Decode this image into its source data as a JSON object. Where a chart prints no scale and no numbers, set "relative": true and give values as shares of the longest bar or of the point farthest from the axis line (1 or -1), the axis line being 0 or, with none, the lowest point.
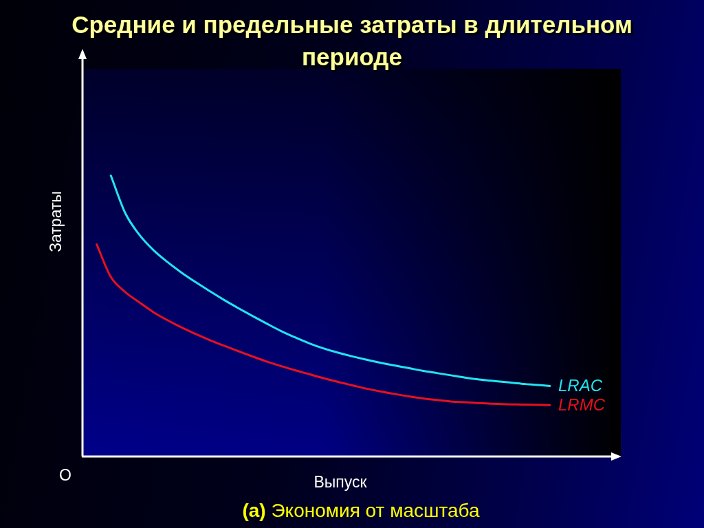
{
  "chart_data": {
    "type": "line",
    "title": "Средние и предельные затраты в длительном периоде",
    "xlabel": "Выпуск",
    "ylabel": "Затраты",
    "relative": true,
    "categories": [
      null,
      null,
      null,
      null,
      null,
      null,
      null,
      null,
      null,
      null,
      null,
      null,
      null,
      null,
      null,
      null,
      null,
      null,
      null,
      null,
      null,
      null,
      null,
      null,
      null,
      null,
      null,
      null,
      null,
      null,
      null,
      null,
      null,
      null,
      null,
      null,
      null,
      null,
      null
    ],
    "series": [
      {
        "name": "LRAC",
        "color": "#22e4f2",
        "values": [
          null,
          null,
          1.0,
          0.868,
          0.79,
          0.735,
          0.692,
          0.654,
          0.62,
          0.588,
          0.557,
          0.528,
          0.5,
          0.473,
          0.447,
          0.424,
          0.403,
          0.385,
          0.37,
          0.357,
          0.345,
          0.334,
          0.324,
          0.315,
          0.305,
          0.297,
          0.289,
          0.281,
          0.274,
          0.269,
          0.264,
          0.259,
          0.255,
          0.251,
          null,
          null,
          null,
          null,
          null
        ]
      },
      {
        "name": "LRMC",
        "color": "#e8101e",
        "values": [
          null,
          0.755,
          0.639,
          0.586,
          0.549,
          0.514,
          0.485,
          0.459,
          0.436,
          0.414,
          0.394,
          0.375,
          0.356,
          0.338,
          0.322,
          0.307,
          0.293,
          0.279,
          0.266,
          0.254,
          0.242,
          0.232,
          0.223,
          0.214,
          0.207,
          0.201,
          0.196,
          0.193,
          0.19,
          0.188,
          0.186,
          0.185,
          0.184,
          0.183,
          null,
          null,
          null,
          null,
          null
        ]
      }
    ],
    "annotations": [
      "O",
      "(а) Экономия от масштаба"
    ]
  }
}
